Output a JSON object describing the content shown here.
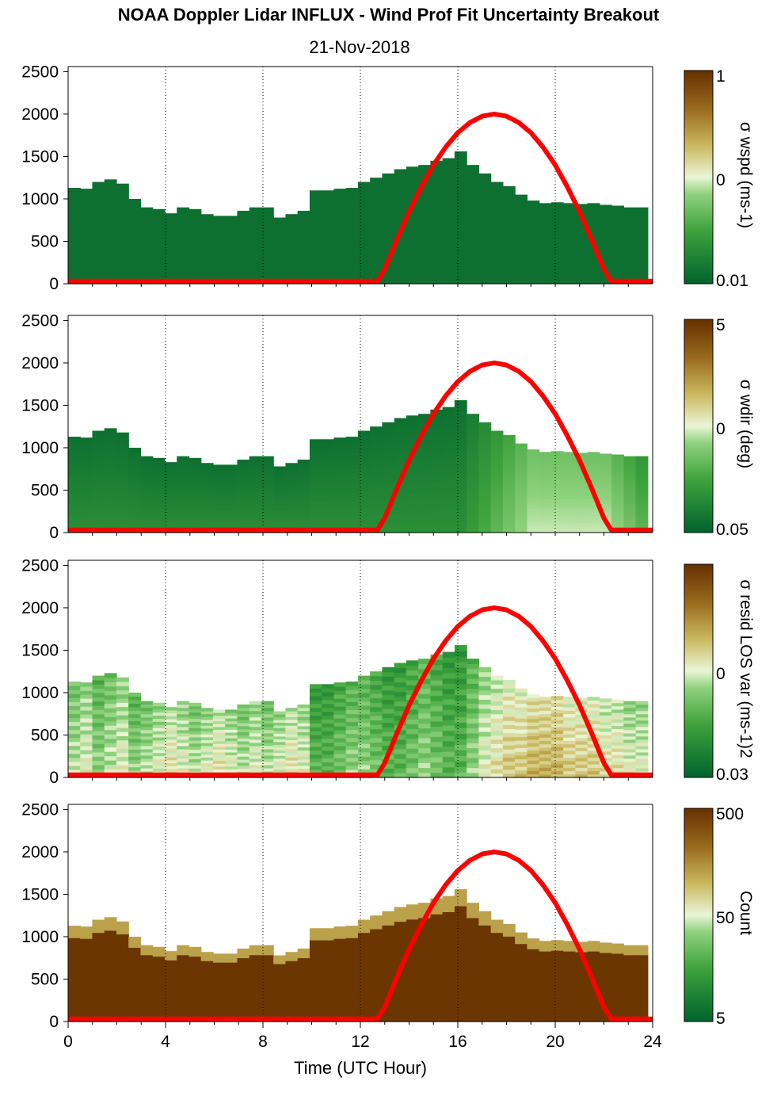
{
  "title": "NOAA Doppler Lidar INFLUX - Wind Prof Fit Uncertainty Breakout",
  "subtitle": "21-Nov-2018",
  "colors": {
    "dark_green": "#00632e",
    "mid_green": "#3fa33c",
    "light_green": "#8fd27d",
    "pale": "#eaf5d6",
    "khaki": "#c9b85d",
    "olive_brown": "#9a6a1c",
    "dark_brown": "#663000",
    "sun_curve": "#ff0000"
  },
  "x_axis": {
    "label": "Time (UTC Hour)",
    "ticks": [
      0,
      4,
      8,
      12,
      16,
      20,
      24
    ],
    "tick_labels": [
      "0",
      "4",
      "8",
      "12",
      "16",
      "20",
      "24"
    ],
    "range": [
      0,
      24
    ],
    "grid": "dotted vertical"
  },
  "y_axis": {
    "ticks": [
      0,
      500,
      1000,
      1500,
      2000,
      2500
    ],
    "tick_labels": [
      "0",
      "500",
      "1000",
      "1500",
      "2000",
      "2500"
    ],
    "range": [
      0,
      2560
    ]
  },
  "chart_data": [
    {
      "type": "heatmap",
      "colorbar_label": "σ wspd (ms-1)",
      "colorbar_ticks": [
        "1",
        "0",
        "0.01"
      ],
      "colorbar_scale": "log",
      "top_height": [
        1130,
        1120,
        1200,
        1230,
        1180,
        1000,
        900,
        880,
        830,
        900,
        880,
        820,
        800,
        800,
        860,
        900,
        900,
        780,
        820,
        860,
        1100,
        1100,
        1120,
        1130,
        1200,
        1250,
        1300,
        1350,
        1380,
        1400,
        1450,
        1480,
        1560,
        1400,
        1300,
        1200,
        1150,
        1050,
        980,
        950,
        960,
        950,
        940,
        950,
        930,
        920,
        900,
        900
      ],
      "intensity": [
        0.05,
        0.05,
        0.05,
        0.05,
        0.05,
        0.05,
        0.05,
        0.05,
        0.05,
        0.05,
        0.05,
        0.05,
        0.05,
        0.05,
        0.05,
        0.05,
        0.05,
        0.05,
        0.05,
        0.05,
        0.05,
        0.05,
        0.05,
        0.05,
        0.05,
        0.05,
        0.05,
        0.05,
        0.05,
        0.05,
        0.05,
        0.05,
        0.05,
        0.05,
        0.05,
        0.05,
        0.05,
        0.05,
        0.05,
        0.05,
        0.05,
        0.05,
        0.05,
        0.05,
        0.05,
        0.05,
        0.05,
        0.05
      ]
    },
    {
      "type": "heatmap",
      "colorbar_label": "σ wdir (deg)",
      "colorbar_ticks": [
        "5",
        "0",
        "0.05"
      ],
      "colorbar_scale": "log",
      "top_height": [
        1130,
        1120,
        1200,
        1230,
        1180,
        1000,
        900,
        880,
        830,
        900,
        880,
        820,
        800,
        800,
        860,
        900,
        900,
        780,
        820,
        860,
        1100,
        1100,
        1120,
        1130,
        1200,
        1250,
        1300,
        1350,
        1380,
        1400,
        1450,
        1480,
        1560,
        1400,
        1300,
        1200,
        1150,
        1050,
        980,
        950,
        960,
        950,
        940,
        950,
        930,
        920,
        900,
        900
      ],
      "intensity": [
        0.05,
        0.05,
        0.05,
        0.05,
        0.05,
        0.05,
        0.05,
        0.05,
        0.05,
        0.05,
        0.05,
        0.05,
        0.05,
        0.05,
        0.05,
        0.05,
        0.05,
        0.05,
        0.05,
        0.05,
        0.05,
        0.05,
        0.05,
        0.05,
        0.05,
        0.05,
        0.05,
        0.05,
        0.05,
        0.05,
        0.05,
        0.05,
        0.05,
        0.1,
        0.15,
        0.2,
        0.25,
        0.3,
        0.35,
        0.35,
        0.35,
        0.35,
        0.35,
        0.35,
        0.35,
        0.3,
        0.25,
        0.2
      ]
    },
    {
      "type": "heatmap",
      "colorbar_label": "σ resid LOS var (ms-1)2",
      "colorbar_ticks": [
        "0",
        "0.03"
      ],
      "colorbar_scale": "log",
      "top_height": [
        1130,
        1120,
        1200,
        1230,
        1180,
        1000,
        900,
        880,
        830,
        900,
        880,
        820,
        800,
        800,
        860,
        900,
        900,
        780,
        820,
        860,
        1100,
        1100,
        1120,
        1130,
        1200,
        1250,
        1300,
        1350,
        1380,
        1400,
        1450,
        1480,
        1560,
        1400,
        1300,
        1200,
        1150,
        1050,
        980,
        950,
        960,
        950,
        940,
        950,
        930,
        920,
        900,
        900
      ],
      "intensity": [
        0.35,
        0.4,
        0.3,
        0.35,
        0.4,
        0.3,
        0.35,
        0.4,
        0.45,
        0.4,
        0.35,
        0.4,
        0.45,
        0.4,
        0.35,
        0.4,
        0.35,
        0.4,
        0.45,
        0.4,
        0.2,
        0.2,
        0.25,
        0.3,
        0.3,
        0.25,
        0.2,
        0.2,
        0.25,
        0.3,
        0.25,
        0.2,
        0.2,
        0.3,
        0.4,
        0.45,
        0.5,
        0.5,
        0.55,
        0.55,
        0.55,
        0.5,
        0.5,
        0.5,
        0.45,
        0.45,
        0.4,
        0.4
      ]
    },
    {
      "type": "heatmap",
      "colorbar_label": "Count",
      "colorbar_ticks": [
        "500",
        "50",
        "5"
      ],
      "colorbar_scale": "log",
      "top_height": [
        1130,
        1120,
        1200,
        1230,
        1180,
        1000,
        900,
        880,
        830,
        900,
        880,
        820,
        800,
        800,
        860,
        900,
        900,
        780,
        820,
        860,
        1100,
        1100,
        1120,
        1130,
        1200,
        1250,
        1300,
        1350,
        1380,
        1400,
        1450,
        1480,
        1560,
        1400,
        1300,
        1200,
        1150,
        1050,
        980,
        950,
        960,
        950,
        940,
        950,
        930,
        920,
        900,
        900
      ],
      "intensity": [
        0.98,
        0.98,
        0.98,
        0.98,
        0.98,
        0.98,
        0.98,
        0.98,
        0.98,
        0.98,
        0.98,
        0.98,
        0.98,
        0.98,
        0.98,
        0.98,
        0.98,
        0.98,
        0.98,
        0.98,
        0.98,
        0.98,
        0.98,
        0.98,
        0.98,
        0.98,
        0.98,
        0.98,
        0.98,
        0.98,
        0.98,
        0.98,
        0.98,
        0.98,
        0.98,
        0.98,
        0.98,
        0.98,
        0.98,
        0.98,
        0.98,
        0.98,
        0.98,
        0.98,
        0.98,
        0.98,
        0.98,
        0.98
      ]
    }
  ],
  "sun_elevation_curve": {
    "series_type": "line",
    "x": [
      0,
      12.7,
      13,
      13.5,
      14,
      14.5,
      15,
      15.5,
      16,
      16.5,
      17,
      17.5,
      18,
      18.5,
      19,
      19.5,
      20,
      20.5,
      21,
      21.5,
      22,
      22.3,
      22.5,
      24
    ],
    "y": [
      30,
      30,
      170,
      520,
      850,
      1140,
      1400,
      1610,
      1780,
      1900,
      1975,
      2000,
      1975,
      1900,
      1780,
      1610,
      1400,
      1140,
      850,
      520,
      170,
      30,
      30,
      30
    ]
  }
}
